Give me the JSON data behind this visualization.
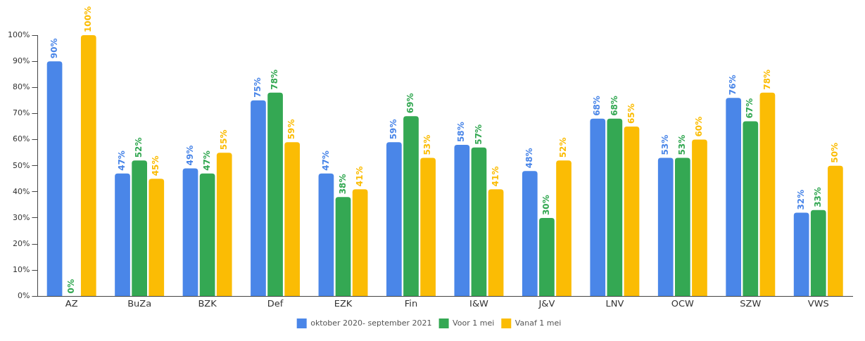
{
  "chart_data": {
    "type": "bar",
    "categories": [
      "AZ",
      "BuZa",
      "BZK",
      "Def",
      "EZK",
      "Fin",
      "I&W",
      "J&V",
      "LNV",
      "OCW",
      "SZW",
      "VWS"
    ],
    "series": [
      {
        "name": "oktober 2020- september 2021",
        "color": "#4a86e8",
        "values": [
          90,
          47,
          49,
          75,
          47,
          59,
          58,
          48,
          68,
          53,
          76,
          32
        ],
        "value_labels": [
          "90%",
          "47%",
          "49%",
          "75%",
          "47%",
          "59%",
          "58%",
          "48%",
          "68%",
          "53%",
          "76%",
          "32%"
        ]
      },
      {
        "name": "Voor 1 mei",
        "color": "#34a853",
        "values": [
          0,
          52,
          47,
          78,
          38,
          69,
          57,
          30,
          68,
          53,
          67,
          33
        ],
        "value_labels": [
          "0%",
          "52%",
          "47%",
          "78%",
          "38%",
          "69%",
          "57%",
          "30%",
          "68%",
          "53%",
          "67%",
          "33%"
        ]
      },
      {
        "name": "Vanaf 1 mei",
        "color": "#fbbc04",
        "values": [
          100,
          45,
          55,
          59,
          41,
          53,
          41,
          52,
          65,
          60,
          78,
          50
        ],
        "value_labels": [
          "100%",
          "45%",
          "55%",
          "59%",
          "41%",
          "53%",
          "41%",
          "52%",
          "65%",
          "60%",
          "78%",
          "50%"
        ]
      }
    ],
    "ylim": [
      0,
      100
    ],
    "yticks": [
      {
        "value": 0,
        "label": "0%"
      },
      {
        "value": 10,
        "label": "10%"
      },
      {
        "value": 20,
        "label": "20%"
      },
      {
        "value": 30,
        "label": "30%"
      },
      {
        "value": 40,
        "label": "40%"
      },
      {
        "value": 50,
        "label": "50%"
      },
      {
        "value": 60,
        "label": "60%"
      },
      {
        "value": 70,
        "label": "70%"
      },
      {
        "value": 80,
        "label": "80%"
      },
      {
        "value": 90,
        "label": "90%"
      },
      {
        "value": 100,
        "label": "100%"
      }
    ],
    "grid": false,
    "legend": "bottom"
  }
}
